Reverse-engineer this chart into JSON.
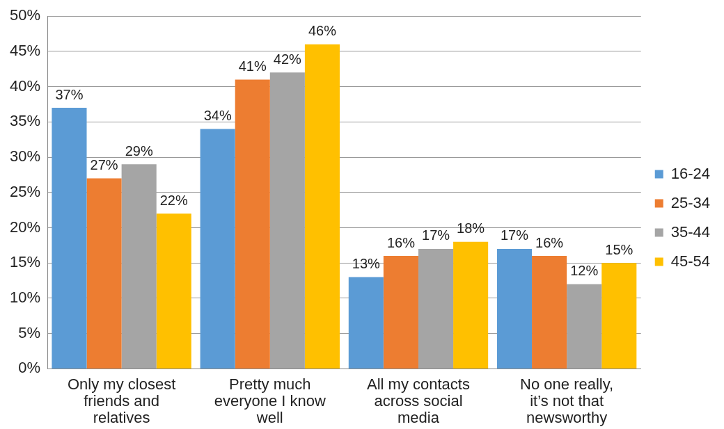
{
  "chart_data": {
    "type": "bar",
    "categories": [
      "Only my closest friends and relatives",
      "Pretty much everyone I know well",
      "All my contacts across social media",
      "No one really, it’s not that newsworthy"
    ],
    "series": [
      {
        "name": "16-24",
        "color": "#5b9bd5",
        "values": [
          37,
          34,
          13,
          17
        ],
        "value_labels": [
          "37%",
          "34%",
          "13%",
          "17%"
        ]
      },
      {
        "name": "25-34",
        "color": "#ed7d31",
        "values": [
          27,
          41,
          16,
          16
        ],
        "value_labels": [
          "27%",
          "41%",
          "16%",
          "16%"
        ]
      },
      {
        "name": "35-44",
        "color": "#a5a5a5",
        "values": [
          29,
          42,
          17,
          12
        ],
        "value_labels": [
          "29%",
          "42%",
          "17%",
          "12%"
        ]
      },
      {
        "name": "45-54",
        "color": "#ffc000",
        "values": [
          22,
          46,
          18,
          15
        ],
        "value_labels": [
          "22%",
          "46%",
          "18%",
          "15%"
        ]
      }
    ],
    "ylim": [
      0,
      50
    ],
    "yticks": [
      {
        "value": 0,
        "label": "0%"
      },
      {
        "value": 5,
        "label": "5%"
      },
      {
        "value": 10,
        "label": "10%"
      },
      {
        "value": 15,
        "label": "15%"
      },
      {
        "value": 20,
        "label": "20%"
      },
      {
        "value": 25,
        "label": "25%"
      },
      {
        "value": 30,
        "label": "30%"
      },
      {
        "value": 35,
        "label": "35%"
      },
      {
        "value": 40,
        "label": "40%"
      },
      {
        "value": 45,
        "label": "45%"
      },
      {
        "value": 50,
        "label": "50%"
      }
    ],
    "grid": "y",
    "legend": "right"
  }
}
